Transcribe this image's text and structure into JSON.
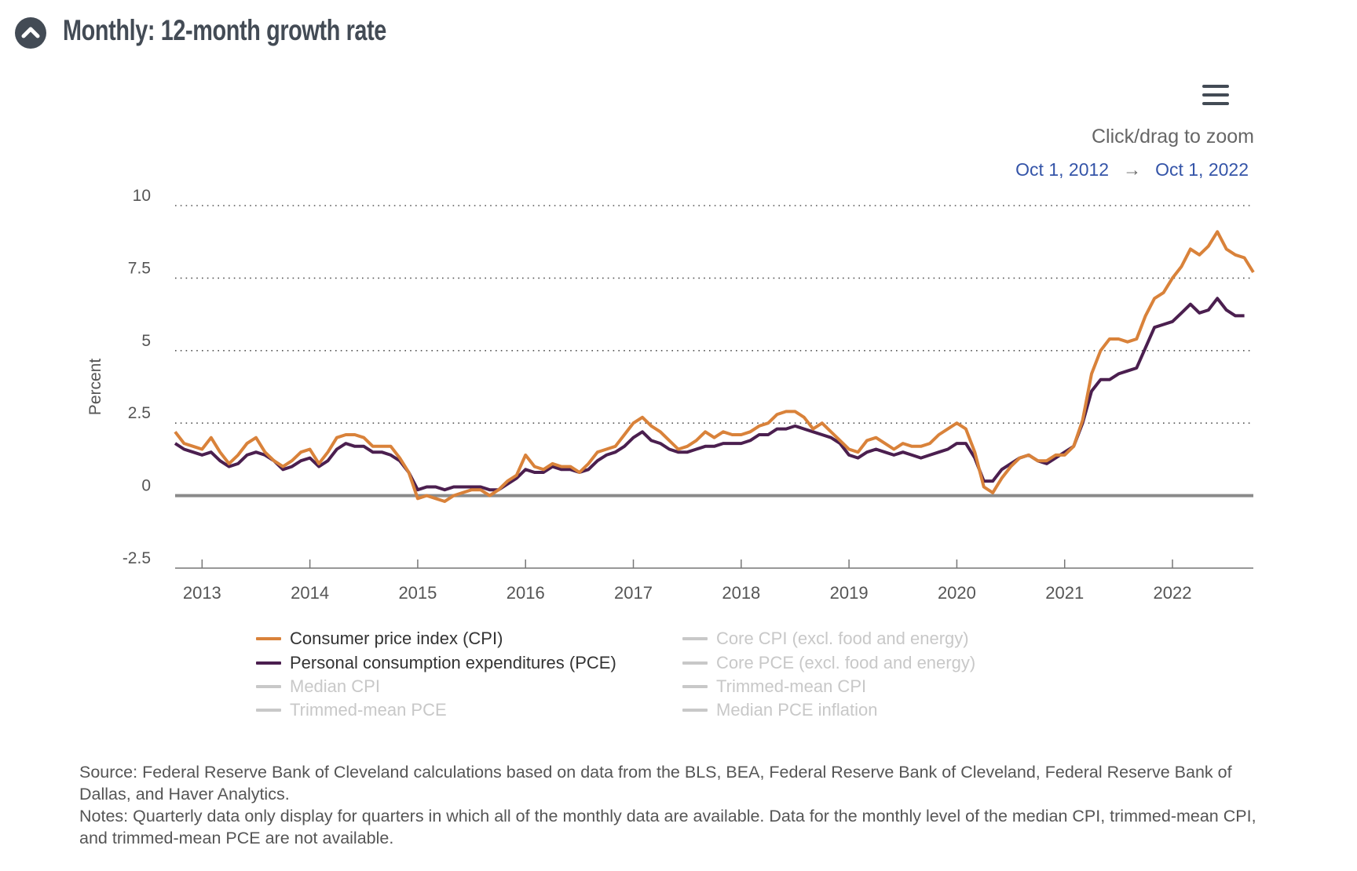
{
  "header": {
    "title": "Monthly: 12-month growth rate",
    "collapse_icon": "chevron-up-circle-icon",
    "menu_icon": "hamburger-menu-icon"
  },
  "zoom_hint": "Click/drag to zoom",
  "range": {
    "start": "Oct 1, 2012",
    "arrow": "→",
    "end": "Oct 1, 2022"
  },
  "colors": {
    "cpi": "#d9823a",
    "pce": "#4b1f4f",
    "inactive": "#c8c8c8",
    "zero_line": "#8a8a8a",
    "grid": "#555555",
    "text": "#555555",
    "link": "#3454a8"
  },
  "chart_data": {
    "type": "line",
    "title": "",
    "xlabel": "",
    "ylabel": "Percent",
    "x_start": "2012-10",
    "x_end": "2022-10",
    "frequency": "monthly",
    "ylim": [
      -2.5,
      10
    ],
    "yticks": [
      "10",
      "7.5",
      "5",
      "2.5",
      "0",
      "-2.5"
    ],
    "ytick_values": [
      10,
      7.5,
      5,
      2.5,
      0,
      -2.5
    ],
    "xticks": [
      "2013",
      "2014",
      "2015",
      "2016",
      "2017",
      "2018",
      "2019",
      "2020",
      "2021",
      "2022"
    ],
    "grid": "horizontal dotted",
    "legend_position": "bottom",
    "series": [
      {
        "name": "Consumer price index (CPI)",
        "color": "#d9823a",
        "active": true,
        "values": [
          2.2,
          1.8,
          1.7,
          1.6,
          2.0,
          1.5,
          1.1,
          1.4,
          1.8,
          2.0,
          1.5,
          1.2,
          1.0,
          1.2,
          1.5,
          1.6,
          1.1,
          1.5,
          2.0,
          2.1,
          2.1,
          2.0,
          1.7,
          1.7,
          1.7,
          1.3,
          0.8,
          -0.1,
          0.0,
          -0.1,
          -0.2,
          0.0,
          0.1,
          0.2,
          0.2,
          0.0,
          0.2,
          0.5,
          0.7,
          1.4,
          1.0,
          0.9,
          1.1,
          1.0,
          1.0,
          0.8,
          1.1,
          1.5,
          1.6,
          1.7,
          2.1,
          2.5,
          2.7,
          2.4,
          2.2,
          1.9,
          1.6,
          1.7,
          1.9,
          2.2,
          2.0,
          2.2,
          2.1,
          2.1,
          2.2,
          2.4,
          2.5,
          2.8,
          2.9,
          2.9,
          2.7,
          2.3,
          2.5,
          2.2,
          1.9,
          1.6,
          1.5,
          1.9,
          2.0,
          1.8,
          1.6,
          1.8,
          1.7,
          1.7,
          1.8,
          2.1,
          2.3,
          2.5,
          2.3,
          1.5,
          0.3,
          0.1,
          0.6,
          1.0,
          1.3,
          1.4,
          1.2,
          1.2,
          1.4,
          1.4,
          1.7,
          2.6,
          4.2,
          5.0,
          5.4,
          5.4,
          5.3,
          5.4,
          6.2,
          6.8,
          7.0,
          7.5,
          7.9,
          8.5,
          8.3,
          8.6,
          9.1,
          8.5,
          8.3,
          8.2,
          7.7
        ]
      },
      {
        "name": "Personal consumption expenditures (PCE)",
        "color": "#4b1f4f",
        "active": true,
        "values": [
          1.8,
          1.6,
          1.5,
          1.4,
          1.5,
          1.2,
          1.0,
          1.1,
          1.4,
          1.5,
          1.4,
          1.2,
          0.9,
          1.0,
          1.2,
          1.3,
          1.0,
          1.2,
          1.6,
          1.8,
          1.7,
          1.7,
          1.5,
          1.5,
          1.4,
          1.2,
          0.8,
          0.2,
          0.3,
          0.3,
          0.2,
          0.3,
          0.3,
          0.3,
          0.3,
          0.2,
          0.2,
          0.4,
          0.6,
          0.9,
          0.8,
          0.8,
          1.0,
          0.9,
          0.9,
          0.8,
          0.9,
          1.2,
          1.4,
          1.5,
          1.7,
          2.0,
          2.2,
          1.9,
          1.8,
          1.6,
          1.5,
          1.5,
          1.6,
          1.7,
          1.7,
          1.8,
          1.8,
          1.8,
          1.9,
          2.1,
          2.1,
          2.3,
          2.3,
          2.4,
          2.3,
          2.2,
          2.1,
          2.0,
          1.8,
          1.4,
          1.3,
          1.5,
          1.6,
          1.5,
          1.4,
          1.5,
          1.4,
          1.3,
          1.4,
          1.5,
          1.6,
          1.8,
          1.8,
          1.3,
          0.5,
          0.5,
          0.9,
          1.1,
          1.3,
          1.4,
          1.2,
          1.1,
          1.3,
          1.5,
          1.7,
          2.5,
          3.6,
          4.0,
          4.0,
          4.2,
          4.3,
          4.4,
          5.1,
          5.8,
          5.9,
          6.0,
          6.3,
          6.6,
          6.3,
          6.4,
          6.8,
          6.4,
          6.2,
          6.2,
          null
        ]
      },
      {
        "name": "Median CPI",
        "active": false,
        "values": []
      },
      {
        "name": "Trimmed-mean PCE",
        "active": false,
        "values": []
      },
      {
        "name": "Core CPI (excl. food and energy)",
        "active": false,
        "values": []
      },
      {
        "name": "Core PCE (excl. food and energy)",
        "active": false,
        "values": []
      },
      {
        "name": "Trimmed-mean CPI",
        "active": false,
        "values": []
      },
      {
        "name": "Median PCE inflation",
        "active": false,
        "values": []
      }
    ]
  },
  "legend": [
    {
      "label": "Consumer price index (CPI)",
      "active": true
    },
    {
      "label": "Personal consumption expenditures (PCE)",
      "active": true
    },
    {
      "label": "Median CPI",
      "active": false
    },
    {
      "label": "Trimmed-mean PCE",
      "active": false
    },
    {
      "label": "Core CPI (excl. food and energy)",
      "active": false
    },
    {
      "label": "Core PCE (excl. food and energy)",
      "active": false
    },
    {
      "label": "Trimmed-mean CPI",
      "active": false
    },
    {
      "label": "Median PCE inflation",
      "active": false
    }
  ],
  "footer": {
    "source": "Source: Federal Reserve Bank of Cleveland calculations based on data from the BLS, BEA, Federal Reserve Bank of Cleveland, Federal Reserve Bank of Dallas, and Haver Analytics.",
    "notes": "Notes: Quarterly data only display for quarters in which all of the monthly data are available. Data for the monthly level of the median CPI, trimmed-mean CPI, and trimmed-mean PCE are not available."
  }
}
